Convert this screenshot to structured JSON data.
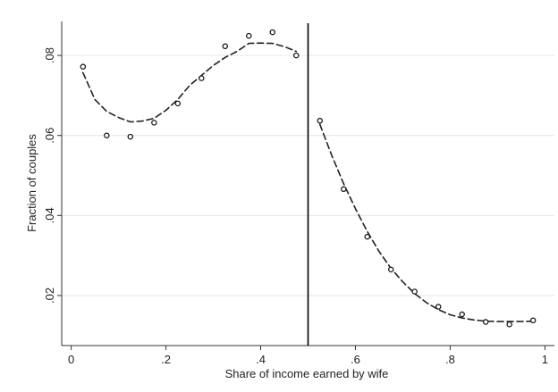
{
  "chart_data": {
    "type": "scatter",
    "title": "",
    "xlabel": "Share of income earned by wife",
    "ylabel": "Fraction of couples",
    "xlim": [
      -0.02,
      1.02
    ],
    "ylim": [
      0.0075,
      0.0885
    ],
    "x_ticks": [
      0,
      0.2,
      0.4,
      0.6,
      0.8,
      1
    ],
    "x_tick_labels": [
      "0",
      ".2",
      ".4",
      ".6",
      ".8",
      "1"
    ],
    "y_ticks": [
      0.02,
      0.04,
      0.06,
      0.08
    ],
    "y_tick_labels": [
      ".02",
      ".04",
      ".06",
      ".08"
    ],
    "grid": "horizontal",
    "threshold_line_x": 0.5,
    "series": [
      {
        "marker": "hollow-circle",
        "x": [
          0.025,
          0.075,
          0.125,
          0.175,
          0.225,
          0.275,
          0.325,
          0.375,
          0.425,
          0.475,
          0.525,
          0.575,
          0.625,
          0.675,
          0.725,
          0.775,
          0.825,
          0.875,
          0.925,
          0.975
        ],
        "y": [
          0.0772,
          0.06,
          0.0597,
          0.0632,
          0.068,
          0.0743,
          0.0823,
          0.0849,
          0.0858,
          0.08,
          0.0637,
          0.0466,
          0.0347,
          0.0265,
          0.021,
          0.0172,
          0.0153,
          0.0134,
          0.0128,
          0.0138
        ]
      },
      {
        "style": "dashed-fit-left",
        "x": [
          0.025,
          0.05,
          0.075,
          0.1,
          0.125,
          0.15,
          0.175,
          0.2,
          0.225,
          0.25,
          0.275,
          0.3,
          0.325,
          0.35,
          0.375,
          0.4,
          0.425,
          0.45,
          0.475
        ],
        "y": [
          0.0757,
          0.069,
          0.066,
          0.0645,
          0.0634,
          0.0636,
          0.0643,
          0.0663,
          0.069,
          0.0725,
          0.075,
          0.0775,
          0.0795,
          0.081,
          0.083,
          0.0831,
          0.083,
          0.0822,
          0.081
        ]
      },
      {
        "style": "dashed-fit-right",
        "x": [
          0.525,
          0.55,
          0.575,
          0.6,
          0.625,
          0.65,
          0.675,
          0.7,
          0.725,
          0.75,
          0.775,
          0.8,
          0.825,
          0.85,
          0.875,
          0.9,
          0.925,
          0.95,
          0.975
        ],
        "y": [
          0.0628,
          0.055,
          0.048,
          0.0417,
          0.036,
          0.031,
          0.0268,
          0.0234,
          0.0205,
          0.0182,
          0.0165,
          0.0152,
          0.0144,
          0.0139,
          0.0136,
          0.0135,
          0.0135,
          0.0135,
          0.0136
        ]
      }
    ]
  }
}
